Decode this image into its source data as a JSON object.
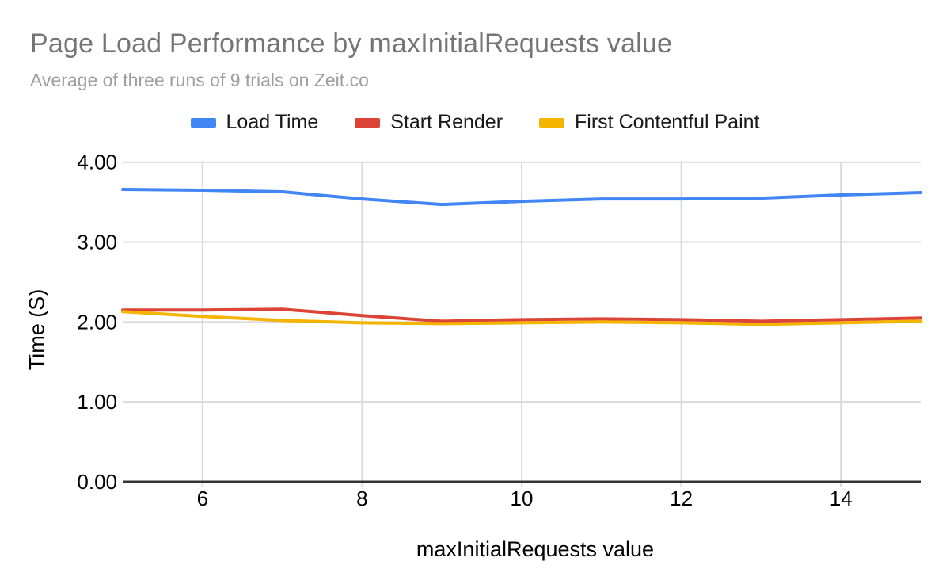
{
  "chart_data": {
    "type": "line",
    "title": "Page Load Performance by maxInitialRequests value",
    "subtitle": "Average of three runs of 9 trials on Zeit.co",
    "xlabel": "maxInitialRequests value",
    "ylabel": "Time (S)",
    "x": [
      5,
      6,
      7,
      8,
      9,
      10,
      11,
      12,
      13,
      14,
      15
    ],
    "xlim": [
      5,
      15
    ],
    "ylim": [
      0,
      4
    ],
    "xticks": [
      6,
      8,
      10,
      12,
      14
    ],
    "xtick_labels": [
      "6",
      "8",
      "10",
      "12",
      "14"
    ],
    "yticks": [
      0,
      1,
      2,
      3,
      4
    ],
    "ytick_labels": [
      "0.00",
      "1.00",
      "2.00",
      "3.00",
      "4.00"
    ],
    "grid": true,
    "legend_position": "top",
    "series": [
      {
        "name": "Load Time",
        "color": "#4285F4",
        "values": [
          3.66,
          3.65,
          3.63,
          3.54,
          3.47,
          3.51,
          3.54,
          3.54,
          3.55,
          3.59,
          3.62
        ]
      },
      {
        "name": "Start Render",
        "color": "#DB4437",
        "values": [
          2.15,
          2.15,
          2.16,
          2.08,
          2.01,
          2.03,
          2.04,
          2.03,
          2.01,
          2.03,
          2.05
        ]
      },
      {
        "name": "First Contentful Paint",
        "color": "#F4B400",
        "values": [
          2.13,
          2.07,
          2.02,
          1.99,
          1.98,
          1.99,
          2.0,
          1.99,
          1.97,
          1.99,
          2.01
        ]
      }
    ],
    "colors": {
      "gridline": "#d9d9d9",
      "baseline": "#333333",
      "tick_label": "#000000",
      "title": "#757575",
      "subtitle": "#9e9e9e"
    }
  }
}
